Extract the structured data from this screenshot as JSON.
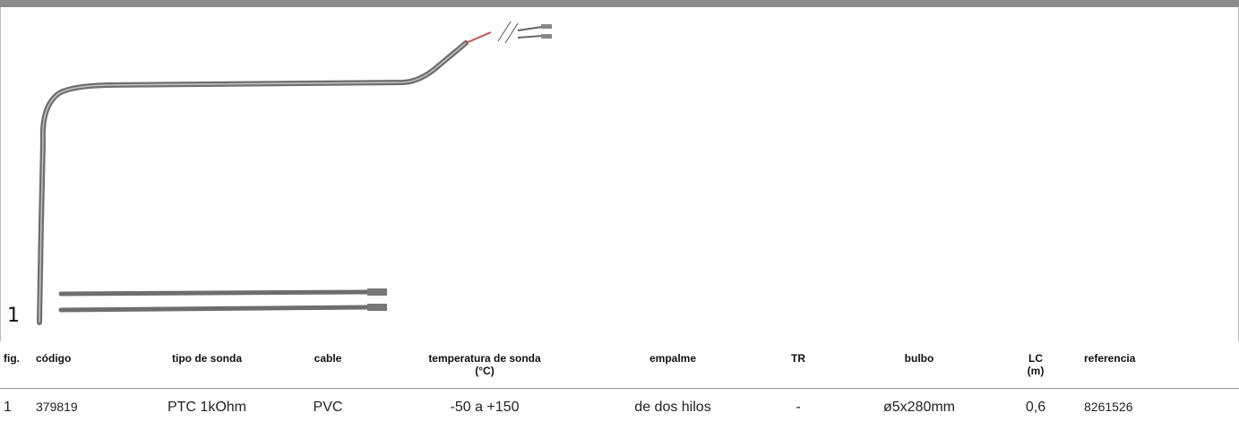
{
  "figure": {
    "label": "1"
  },
  "table": {
    "headers": [
      "fig.",
      "código",
      "tipo de sonda",
      "cable",
      "temperatura de sonda\n(°C)",
      "empalme",
      "TR",
      "bulbo",
      "LC\n(m)",
      "referencia"
    ],
    "rows": [
      [
        "1",
        "379819",
        "PTC 1kOhm",
        "PVC",
        "-50 a +150",
        "de dos hilos",
        "-",
        "ø5x280mm",
        "0,6",
        "8261526"
      ]
    ]
  }
}
